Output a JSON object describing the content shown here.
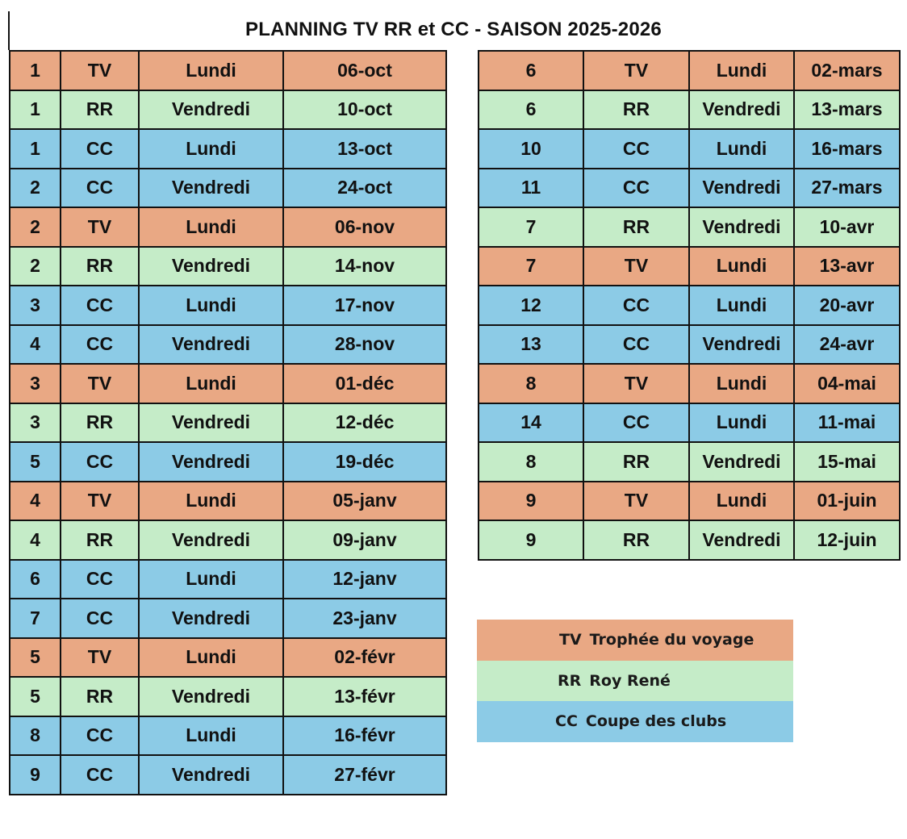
{
  "title": "PLANNING TV RR et CC - SAISON 2025-2026",
  "colors": {
    "TV": "#e9a884",
    "RR": "#c5ecc8",
    "CC": "#8ccbe6"
  },
  "schedule": {
    "left": [
      {
        "num": "1",
        "code": "TV",
        "day": "Lundi",
        "date": "06-oct"
      },
      {
        "num": "1",
        "code": "RR",
        "day": "Vendredi",
        "date": "10-oct"
      },
      {
        "num": "1",
        "code": "CC",
        "day": "Lundi",
        "date": "13-oct"
      },
      {
        "num": "2",
        "code": "CC",
        "day": "Vendredi",
        "date": "24-oct"
      },
      {
        "num": "2",
        "code": "TV",
        "day": "Lundi",
        "date": "06-nov"
      },
      {
        "num": "2",
        "code": "RR",
        "day": "Vendredi",
        "date": "14-nov"
      },
      {
        "num": "3",
        "code": "CC",
        "day": "Lundi",
        "date": "17-nov"
      },
      {
        "num": "4",
        "code": "CC",
        "day": "Vendredi",
        "date": "28-nov"
      },
      {
        "num": "3",
        "code": "TV",
        "day": "Lundi",
        "date": "01-déc"
      },
      {
        "num": "3",
        "code": "RR",
        "day": "Vendredi",
        "date": "12-déc"
      },
      {
        "num": "5",
        "code": "CC",
        "day": "Vendredi",
        "date": "19-déc"
      },
      {
        "num": "4",
        "code": "TV",
        "day": "Lundi",
        "date": "05-janv"
      },
      {
        "num": "4",
        "code": "RR",
        "day": "Vendredi",
        "date": "09-janv"
      },
      {
        "num": "6",
        "code": "CC",
        "day": "Lundi",
        "date": "12-janv"
      },
      {
        "num": "7",
        "code": "CC",
        "day": "Vendredi",
        "date": "23-janv"
      },
      {
        "num": "5",
        "code": "TV",
        "day": "Lundi",
        "date": "02-févr"
      },
      {
        "num": "5",
        "code": "RR",
        "day": "Vendredi",
        "date": "13-févr"
      },
      {
        "num": "8",
        "code": "CC",
        "day": "Lundi",
        "date": "16-févr"
      },
      {
        "num": "9",
        "code": "CC",
        "day": "Vendredi",
        "date": "27-févr"
      }
    ],
    "right": [
      {
        "num": "6",
        "code": "TV",
        "day": "Lundi",
        "date": "02-mars"
      },
      {
        "num": "6",
        "code": "RR",
        "day": "Vendredi",
        "date": "13-mars"
      },
      {
        "num": "10",
        "code": "CC",
        "day": "Lundi",
        "date": "16-mars"
      },
      {
        "num": "11",
        "code": "CC",
        "day": "Vendredi",
        "date": "27-mars"
      },
      {
        "num": "7",
        "code": "RR",
        "day": "Vendredi",
        "date": "10-avr"
      },
      {
        "num": "7",
        "code": "TV",
        "day": "Lundi",
        "date": "13-avr"
      },
      {
        "num": "12",
        "code": "CC",
        "day": "Lundi",
        "date": "20-avr"
      },
      {
        "num": "13",
        "code": "CC",
        "day": "Vendredi",
        "date": "24-avr"
      },
      {
        "num": "8",
        "code": "TV",
        "day": "Lundi",
        "date": "04-mai"
      },
      {
        "num": "14",
        "code": "CC",
        "day": "Lundi",
        "date": "11-mai"
      },
      {
        "num": "8",
        "code": "RR",
        "day": "Vendredi",
        "date": "15-mai"
      },
      {
        "num": "9",
        "code": "TV",
        "day": "Lundi",
        "date": "01-juin"
      },
      {
        "num": "9",
        "code": "RR",
        "day": "Vendredi",
        "date": "12-juin"
      }
    ]
  },
  "legend": [
    {
      "code": "TV",
      "label": "Trophée du voyage"
    },
    {
      "code": "RR",
      "label": "Roy René"
    },
    {
      "code": "CC",
      "label": "Coupe des clubs"
    }
  ]
}
